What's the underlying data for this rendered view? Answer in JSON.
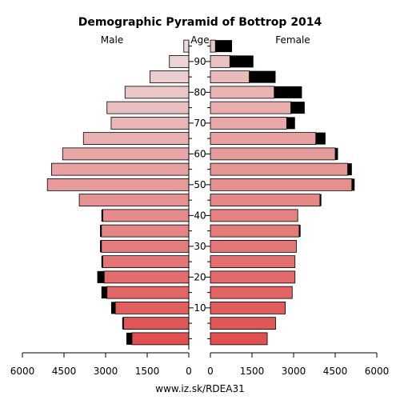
{
  "chart_data": {
    "type": "bar",
    "title": "Demographic Pyramid of Bottrop 2014",
    "left_label": "Male",
    "center_label": "Age",
    "right_label": "Female",
    "footer": "www.iz.sk/RDEA31",
    "x_ticks": [
      "6000",
      "4500",
      "3000",
      "1500",
      "0",
      "0",
      "1500",
      "3000",
      "4500",
      "6000"
    ],
    "age_ticks": [
      "10",
      "20",
      "30",
      "40",
      "50",
      "60",
      "70",
      "80",
      "90"
    ],
    "xlim": [
      0,
      6000
    ],
    "series": [
      {
        "name": "Male",
        "values": [
          2050,
          2350,
          2650,
          2950,
          3050,
          3100,
          3150,
          3150,
          3100,
          3950,
          5100,
          4950,
          4550,
          3800,
          2800,
          2950,
          2300,
          1400,
          700,
          180
        ]
      },
      {
        "name": "Female",
        "values": [
          2050,
          2350,
          2700,
          2950,
          3050,
          3050,
          3100,
          3200,
          3150,
          3950,
          5100,
          4950,
          4500,
          3800,
          2750,
          2900,
          2300,
          1400,
          700,
          180
        ]
      }
    ],
    "extra_male": [
      200,
      50,
      150,
      200,
      250,
      50,
      50,
      50,
      50,
      0,
      0,
      0,
      0,
      0,
      0,
      0,
      0,
      0,
      0,
      0
    ],
    "extra_female": [
      0,
      0,
      0,
      0,
      0,
      0,
      0,
      50,
      0,
      50,
      100,
      150,
      100,
      350,
      300,
      500,
      1000,
      950,
      850,
      600
    ],
    "colors": {
      "bar_start": "#e05050",
      "bar_end": "#ecdcdc",
      "extra": "#000000",
      "axis": "#000000"
    }
  }
}
